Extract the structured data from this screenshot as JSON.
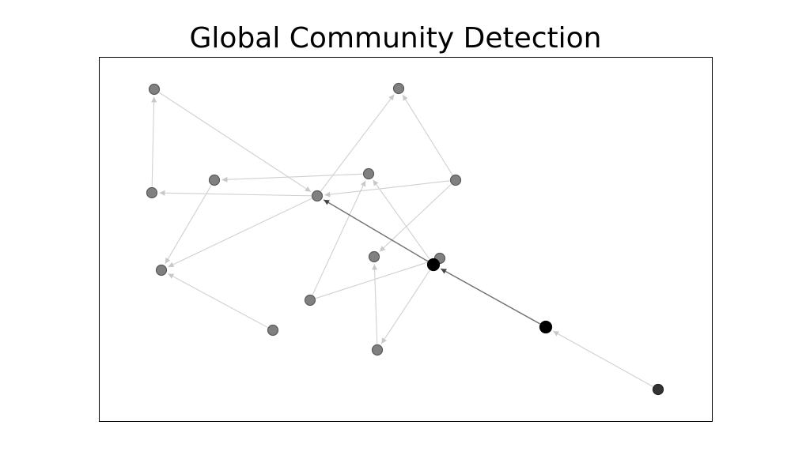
{
  "title": "Global Community Detection",
  "colors": {
    "node": "#808080",
    "node_stroke": "#5a5a5a",
    "node_hub": "#000000",
    "node_dark": "#333333",
    "edge_light": "#d0d0d0",
    "edge_dark": "#555555"
  },
  "graph": {
    "nodes": [
      {
        "id": "n1",
        "style": "normal"
      },
      {
        "id": "n2",
        "style": "normal"
      },
      {
        "id": "n3",
        "style": "normal"
      },
      {
        "id": "n4",
        "style": "normal"
      },
      {
        "id": "n5",
        "style": "normal"
      },
      {
        "id": "n6",
        "style": "normal"
      },
      {
        "id": "n7",
        "style": "normal"
      },
      {
        "id": "n8",
        "style": "normal"
      },
      {
        "id": "n9",
        "style": "normal"
      },
      {
        "id": "n10",
        "style": "normal"
      },
      {
        "id": "n11",
        "style": "normal"
      },
      {
        "id": "n12",
        "style": "normal"
      },
      {
        "id": "n13",
        "style": "hub"
      },
      {
        "id": "n14",
        "style": "hub"
      },
      {
        "id": "n15",
        "style": "dark"
      },
      {
        "id": "n16",
        "style": "normal"
      }
    ],
    "edges": [
      {
        "from": "n1",
        "to": "n6",
        "strength": "light"
      },
      {
        "from": "n3",
        "to": "n1",
        "strength": "light"
      },
      {
        "from": "n6",
        "to": "n3",
        "strength": "light"
      },
      {
        "from": "n5",
        "to": "n4",
        "strength": "light"
      },
      {
        "from": "n4",
        "to": "n9",
        "strength": "light"
      },
      {
        "from": "n6",
        "to": "n2",
        "strength": "light"
      },
      {
        "from": "n6",
        "to": "n9",
        "strength": "light"
      },
      {
        "from": "n7",
        "to": "n6",
        "strength": "light"
      },
      {
        "from": "n7",
        "to": "n8",
        "strength": "light"
      },
      {
        "from": "n7",
        "to": "n2",
        "strength": "light"
      },
      {
        "from": "n16",
        "to": "n5",
        "strength": "light"
      },
      {
        "from": "n16",
        "to": "n10",
        "strength": "light"
      },
      {
        "from": "n12",
        "to": "n9",
        "strength": "light"
      },
      {
        "from": "n11",
        "to": "n8",
        "strength": "light"
      },
      {
        "from": "n13",
        "to": "n5",
        "strength": "light"
      },
      {
        "from": "n13",
        "to": "n6",
        "strength": "dark"
      },
      {
        "from": "n13",
        "to": "n11",
        "strength": "light"
      },
      {
        "from": "n14",
        "to": "n13",
        "strength": "dark"
      },
      {
        "from": "n15",
        "to": "n14",
        "strength": "light"
      }
    ]
  }
}
